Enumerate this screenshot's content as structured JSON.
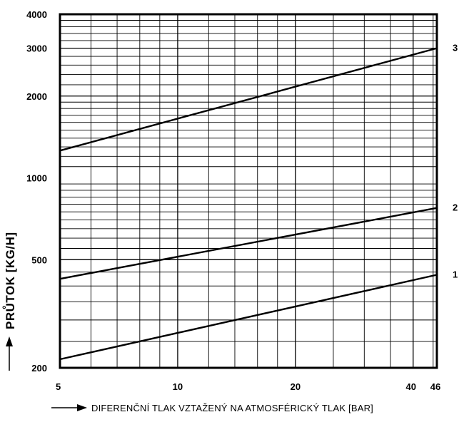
{
  "chart_data": {
    "type": "line",
    "title": "",
    "xlabel": "DIFERENČNÍ TLAK VZTAŽENÝ NA ATMOSFÉRICKÝ TLAK [BAR]",
    "ylabel": "PRŮTOK [KG/H]",
    "x_scale": "log",
    "y_scale": "log",
    "xlim": [
      5,
      46
    ],
    "ylim": [
      200,
      4000
    ],
    "x_ticks": [
      5,
      10,
      20,
      40,
      46
    ],
    "x_tick_labels": [
      "5",
      "10",
      "20",
      "40",
      "46"
    ],
    "y_ticks": [
      200,
      500,
      1000,
      2000,
      3000,
      4000
    ],
    "y_tick_labels": [
      "200",
      "500",
      "1000",
      "2000",
      "3000",
      "4000"
    ],
    "grid": true,
    "series": [
      {
        "name": "1",
        "x": [
          5,
          46
        ],
        "y": [
          215,
          440
        ]
      },
      {
        "name": "2",
        "x": [
          5,
          46
        ],
        "y": [
          425,
          775
        ]
      },
      {
        "name": "3",
        "x": [
          5,
          46
        ],
        "y": [
          1260,
          3000
        ]
      }
    ],
    "color": "#000000"
  }
}
